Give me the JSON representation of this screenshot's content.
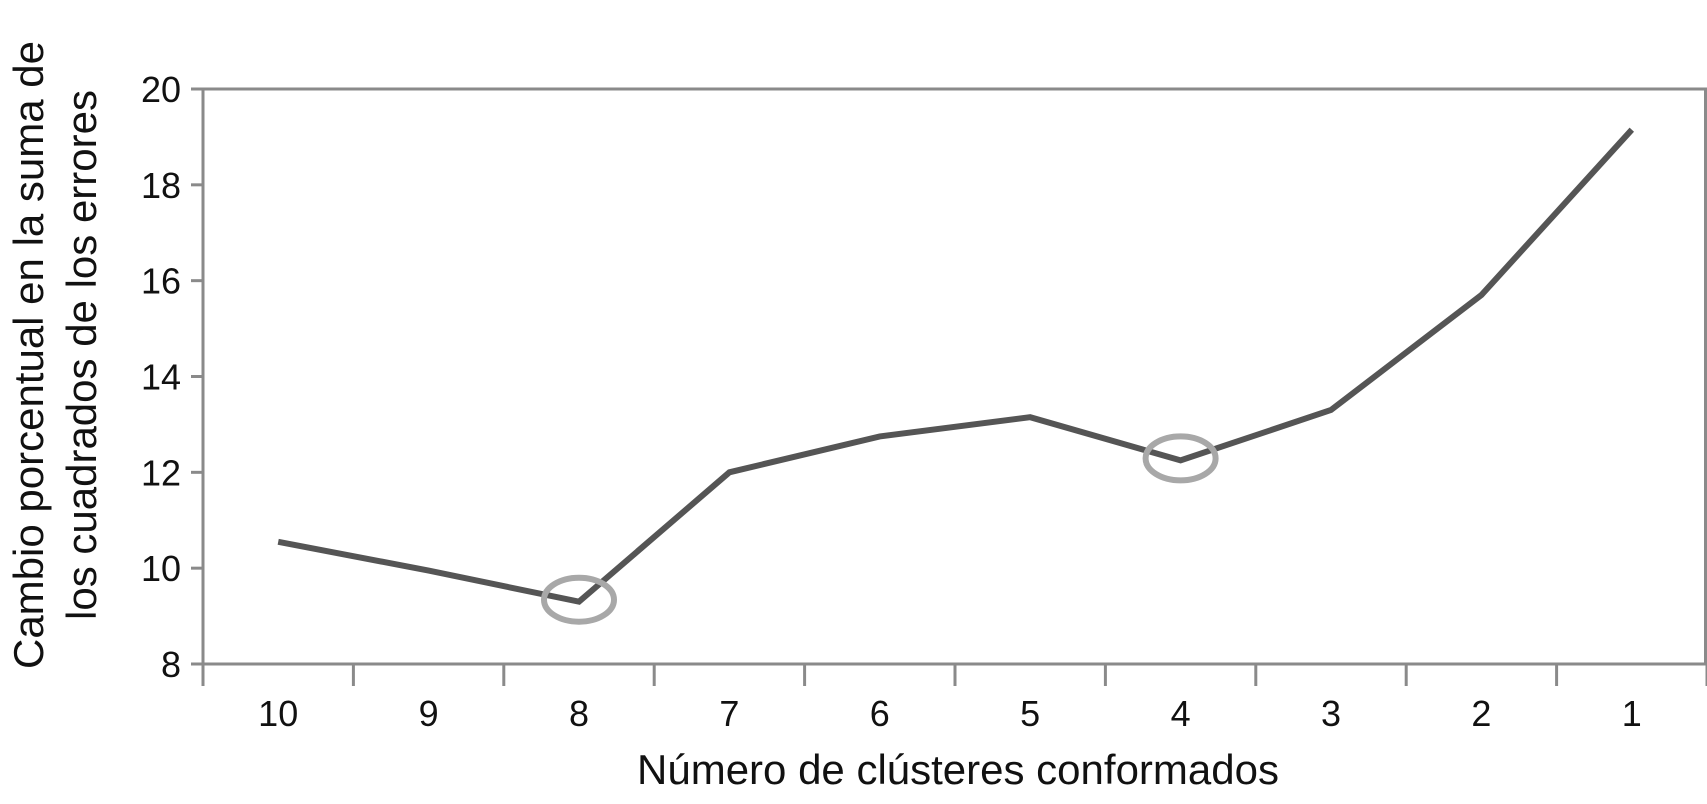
{
  "chart_data": {
    "type": "line",
    "title": "",
    "xlabel": "Número de clústeres conformados",
    "ylabel_line1": "Cambio porcentual en la suma de",
    "ylabel_line2": "los cuadrados de los errores",
    "categories": [
      "10",
      "9",
      "8",
      "7",
      "6",
      "5",
      "4",
      "3",
      "2",
      "1"
    ],
    "series": [
      {
        "values": [
          10.55,
          9.95,
          9.3,
          12.0,
          12.75,
          13.15,
          12.25,
          13.3,
          15.7,
          19.15
        ]
      }
    ],
    "highlighted_categories": [
      "8",
      "4"
    ],
    "ylim": [
      8,
      20
    ],
    "yticks": [
      8,
      10,
      12,
      14,
      16,
      18,
      20
    ],
    "grid": false,
    "legend": "none",
    "colors": {
      "line": "#555555",
      "axis": "#8a8a8a",
      "highlight_ring": "#a8a8a8"
    }
  }
}
